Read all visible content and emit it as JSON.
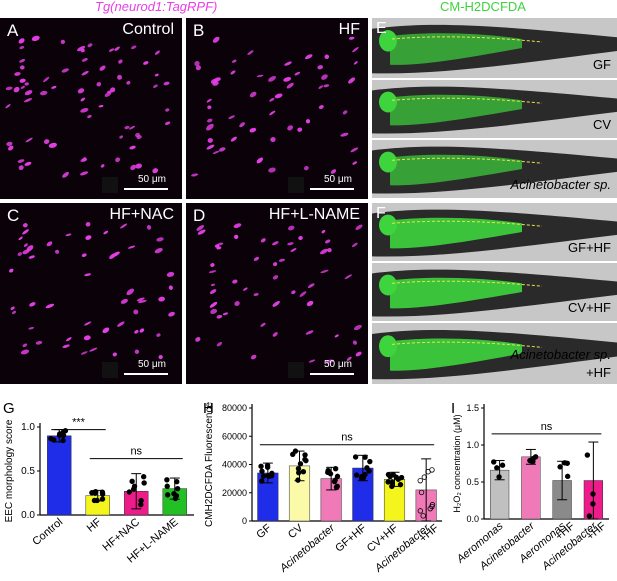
{
  "header_left": "Tg(neurod1:TagRPF)",
  "header_right": "CM-H2DCFDA",
  "panels": {
    "A": {
      "letter": "A",
      "label": "Control"
    },
    "B": {
      "letter": "B",
      "label": "HF"
    },
    "C": {
      "letter": "C",
      "label": "HF+NAC"
    },
    "D": {
      "letter": "D",
      "label": "HF+L-NAME"
    },
    "E": {
      "letter": "E",
      "labels": [
        "GF",
        "CV",
        "Acinetobacter sp."
      ]
    },
    "F": {
      "letter": "F",
      "labels": [
        "GF+HF",
        "CV+HF",
        "Acinetobacter sp.",
        "+HF"
      ]
    }
  },
  "scale": "50 μm",
  "colors": {
    "magenta": "#e83fe8",
    "green": "#3dd43d"
  },
  "graph_letters": {
    "G": "G",
    "H": "H",
    "I": "I"
  },
  "chart_data": [
    {
      "type": "bar",
      "panel": "G",
      "ylabel": "EEC morphology score",
      "categories": [
        "Control",
        "HF",
        "HF+NAC",
        "HF+L-NAME"
      ],
      "values": [
        0.9,
        0.22,
        0.27,
        0.3
      ],
      "errors": [
        0.07,
        0.06,
        0.2,
        0.12
      ],
      "colors": [
        "#1f2de8",
        "#f5f51e",
        "#ee1b8a",
        "#22c024"
      ],
      "ylim": [
        0,
        1.0
      ],
      "yticks": [
        "0.0",
        "0.5",
        "1.0"
      ],
      "annotations": [
        {
          "text": "***"
        },
        {
          "text": "ns"
        }
      ]
    },
    {
      "type": "bar",
      "panel": "H",
      "ylabel": "CMH2DCFDA Fluorescence",
      "categories": [
        "GF",
        "CV",
        "Acinetobacter",
        "GF+HF",
        "CV+HF",
        "Acinetobacter +HF"
      ],
      "values": [
        34000,
        39000,
        30000,
        37500,
        29500,
        22000
      ],
      "errors": [
        7000,
        10500,
        8000,
        9000,
        5000,
        22000
      ],
      "colors": [
        "#1f2de8",
        "#fafaa8",
        "#f07ab8",
        "#1f2de8",
        "#f5f51e",
        "#f07ab8"
      ],
      "ylim": [
        0,
        80000
      ],
      "yticks": [
        "0",
        "20000",
        "40000",
        "60000",
        "80000"
      ],
      "annotations": [
        {
          "text": "ns"
        }
      ]
    },
    {
      "type": "bar",
      "panel": "I",
      "ylabel": "H₂O₂ concentration (μM)",
      "categories": [
        "Aeromonas",
        "Acinetobacter",
        "Aeromonas +HF",
        "Acinetobacter +HF"
      ],
      "values": [
        0.66,
        0.84,
        0.52,
        0.52
      ],
      "errors": [
        0.13,
        0.1,
        0.26,
        0.52
      ],
      "colors": [
        "#c0c0c0",
        "#f07ab8",
        "#8a8a8a",
        "#ee1b8a"
      ],
      "ylim": [
        0,
        1.5
      ],
      "yticks": [
        "0.0",
        "0.5",
        "1.0",
        "1.5"
      ],
      "annotations": [
        {
          "text": "ns"
        }
      ]
    }
  ]
}
